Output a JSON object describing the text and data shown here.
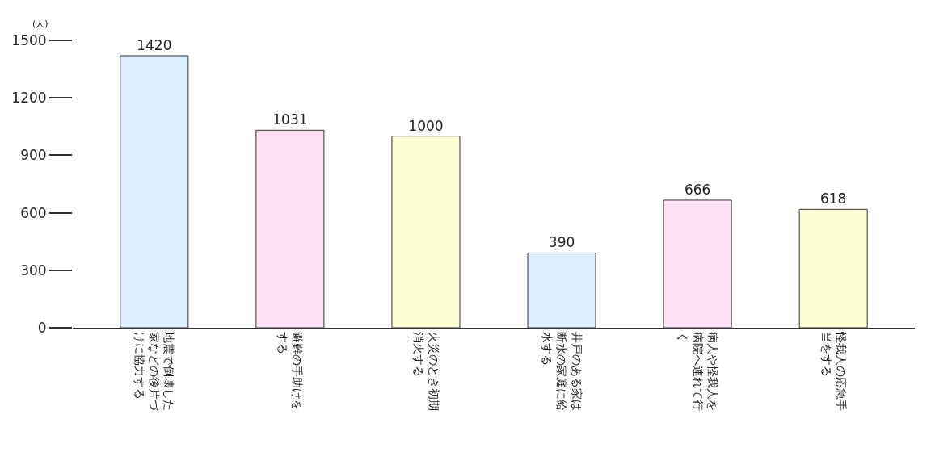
{
  "chart_data": {
    "type": "bar",
    "ylabel": "(人)",
    "categories": [
      "地震で倒壊した家などの後片づけに協力する",
      "避難の手助けをする",
      "火災のとき初期消火する",
      "井戸のある家は断水の家庭に給水する",
      "病人や怪我人を病院へ連れて行く",
      "怪我人の応急手当をする"
    ],
    "values": [
      1420,
      1031,
      1000,
      390,
      666,
      618
    ],
    "colors": [
      "#dceeff",
      "#ffdff3",
      "#ffffd6",
      "#dceeff",
      "#ffdff3",
      "#ffffd6"
    ],
    "ylim": [
      0,
      1500
    ],
    "yticks": [
      0,
      300,
      600,
      900,
      1200,
      1500
    ],
    "data_labels": true
  }
}
